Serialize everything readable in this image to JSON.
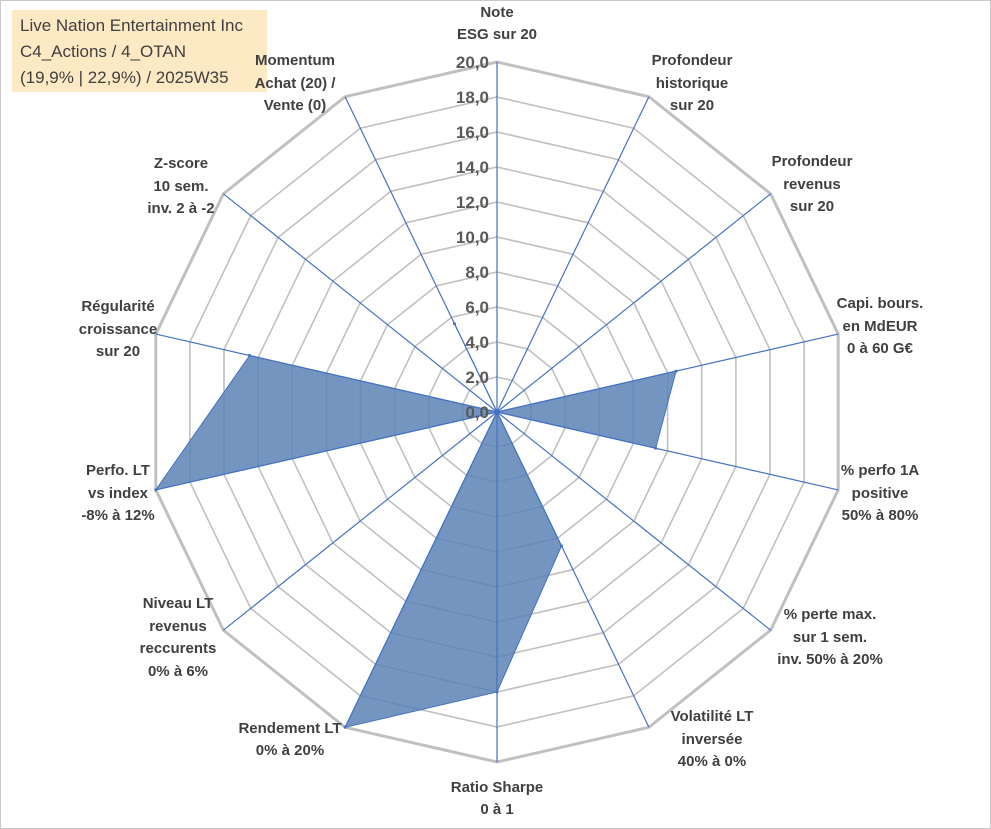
{
  "title_box": {
    "line1": "Live Nation Entertainment Inc",
    "line2": "C4_Actions / 4_OTAN",
    "line3": "(19,9% | 22,9%) / 2025W35"
  },
  "colors": {
    "fill": "#5b82b5",
    "fill_stroke": "#4472c4",
    "grid": "#c0c0c0",
    "spoke": "#4472c4",
    "text": "#404040",
    "title_bg": "#fde9c4"
  },
  "chart_data": {
    "type": "radar",
    "rmin": 0,
    "rmax": 20,
    "grid": true,
    "tick_labels": [
      "0,0",
      "2,0",
      "4,0",
      "6,0",
      "8,0",
      "10,0",
      "12,0",
      "14,0",
      "16,0",
      "18,0",
      "20,0"
    ],
    "categories": [
      [
        "Note",
        "ESG sur 20"
      ],
      [
        "Profondeur",
        "historique",
        "sur 20"
      ],
      [
        "Profondeur",
        "revenus",
        "sur 20"
      ],
      [
        "Capi. bours.",
        "en MdEUR",
        "0 à 60 G€"
      ],
      [
        "% perfo 1A",
        "positive",
        "50% à 80%"
      ],
      [
        "% perte max.",
        "sur 1 sem.",
        "inv. 50% à 20%"
      ],
      [
        "Volatilité LT",
        "inversée",
        "40% à 0%"
      ],
      [
        "Ratio Sharpe",
        "0 à 1"
      ],
      [
        "Rendement LT",
        "0% à 20%"
      ],
      [
        "Niveau LT",
        "revenus",
        "reccurents",
        "0% à 6%"
      ],
      [
        "Perfo. LT",
        "vs index",
        "-8% à 12%"
      ],
      [
        "Régularité",
        "croissance",
        "sur 20"
      ],
      [
        "Z-score",
        "10 sem.",
        "inv. 2 à -2"
      ],
      [
        "Momentum",
        "Achat (20) /",
        "Vente (0)"
      ]
    ],
    "series": [
      {
        "values": [
          0,
          0,
          0,
          10.5,
          9.3,
          0,
          8.5,
          16.0,
          20.0,
          0,
          20.0,
          14.5,
          0,
          5.6
        ]
      }
    ]
  }
}
